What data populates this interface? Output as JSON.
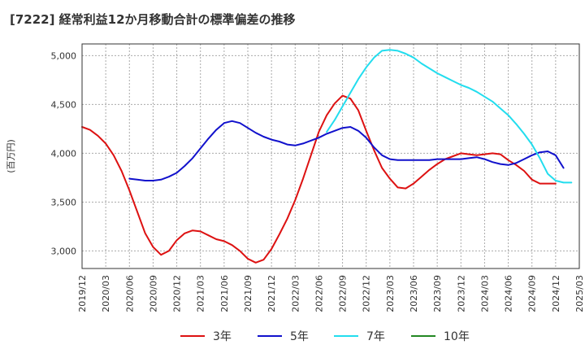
{
  "chart_data": {
    "type": "line",
    "title": "[7222]  経常利益12か月移動合計の標準偏差の推移",
    "ylabel": "(百万円)",
    "xlabel": "",
    "ylim": [
      2820,
      5120
    ],
    "yticks": [
      3000,
      3500,
      4000,
      4500,
      5000
    ],
    "ytick_labels": [
      "3,000",
      "3,500",
      "4,000",
      "4,500",
      "5,000"
    ],
    "xticks": [
      "2019/12",
      "2020/03",
      "2020/06",
      "2020/09",
      "2020/12",
      "2021/03",
      "2021/06",
      "2021/09",
      "2021/12",
      "2022/03",
      "2022/06",
      "2022/09",
      "2022/12",
      "2023/03",
      "2023/06",
      "2023/09",
      "2023/12",
      "2024/03",
      "2024/06",
      "2024/09",
      "2024/12",
      "2025/03"
    ],
    "grid": true,
    "legend_position": "bottom",
    "series": [
      {
        "name": "3年",
        "color": "#dd1111",
        "start": "2019/12",
        "values": [
          4270,
          4240,
          4180,
          4100,
          3980,
          3820,
          3620,
          3400,
          3180,
          3040,
          2960,
          3000,
          3110,
          3180,
          3210,
          3200,
          3160,
          3120,
          3100,
          3060,
          3000,
          2920,
          2880,
          2910,
          3020,
          3170,
          3330,
          3520,
          3740,
          3980,
          4220,
          4390,
          4510,
          4590,
          4560,
          4440,
          4230,
          4030,
          3850,
          3740,
          3650,
          3640,
          3690,
          3760,
          3830,
          3890,
          3940,
          3970,
          4000,
          3990,
          3980,
          3990,
          4000,
          3990,
          3930,
          3880,
          3820,
          3730,
          3690,
          3690,
          3690
        ]
      },
      {
        "name": "5年",
        "color": "#1111cc",
        "start": "2019/12",
        "values": [
          null,
          null,
          null,
          null,
          null,
          null,
          3740,
          3730,
          3720,
          3720,
          3730,
          3760,
          3800,
          3870,
          3950,
          4050,
          4150,
          4240,
          4310,
          4330,
          4310,
          4260,
          4210,
          4170,
          4140,
          4120,
          4090,
          4080,
          4100,
          4130,
          4160,
          4200,
          4230,
          4260,
          4270,
          4230,
          4160,
          4060,
          3980,
          3940,
          3930,
          3930,
          3930,
          3930,
          3930,
          3940,
          3940,
          3940,
          3940,
          3950,
          3960,
          3940,
          3910,
          3890,
          3880,
          3900,
          3940,
          3980,
          4010,
          4020,
          3980,
          3850
        ]
      },
      {
        "name": "7年",
        "color": "#22ddee",
        "start": "2019/12",
        "values": [
          null,
          null,
          null,
          null,
          null,
          null,
          null,
          null,
          null,
          null,
          null,
          null,
          null,
          null,
          null,
          null,
          null,
          null,
          null,
          null,
          null,
          null,
          null,
          null,
          null,
          null,
          null,
          null,
          null,
          null,
          null,
          4220,
          4340,
          4480,
          4620,
          4760,
          4880,
          4980,
          5050,
          5060,
          5050,
          5020,
          4980,
          4920,
          4870,
          4820,
          4780,
          4740,
          4700,
          4670,
          4630,
          4580,
          4530,
          4460,
          4390,
          4300,
          4200,
          4090,
          3950,
          3790,
          3720,
          3700,
          3700
        ]
      },
      {
        "name": "10年",
        "color": "#228822",
        "start": "2019/12",
        "values": []
      }
    ]
  }
}
